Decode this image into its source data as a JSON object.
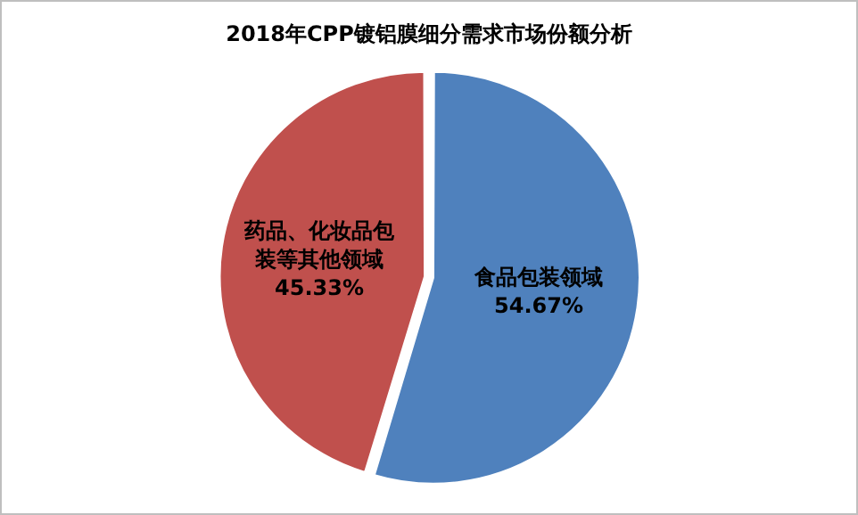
{
  "chart_data": {
    "type": "pie",
    "title": "2018年CPP镀铝膜细分需求市场份额分析",
    "categories": [
      "食品包装领域",
      "药品、化妆品包装等其他领域"
    ],
    "values": [
      54.67,
      45.33
    ],
    "colors": [
      "#4f81bd",
      "#c0504d"
    ],
    "value_labels": [
      "54.67%",
      "45.33%"
    ],
    "legend": false
  }
}
